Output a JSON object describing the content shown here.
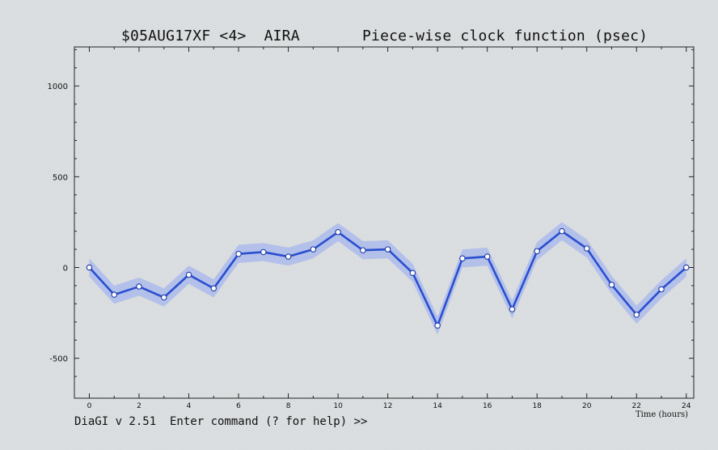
{
  "window": {
    "title": "$05AUG17XF <4>  AIRA       Piece-wise clock function (psec)",
    "status_line": "DiaGI v 2.51  Enter command (? for help) >>"
  },
  "chart_data": {
    "type": "line",
    "title": "$05AUG17XF <4>  AIRA       Piece-wise clock function (psec)",
    "xlabel": "Time (hours)",
    "ylabel": "",
    "xlim": [
      -0.6,
      24.3
    ],
    "ylim": [
      -720,
      1215
    ],
    "x_ticks": [
      0,
      2,
      4,
      6,
      8,
      10,
      12,
      14,
      16,
      18,
      20,
      22,
      24
    ],
    "y_ticks": [
      -500,
      0,
      500,
      1000
    ],
    "grid": false,
    "legend": "none",
    "series": [
      {
        "x": [
          0,
          1,
          2,
          3,
          4,
          5,
          6,
          7,
          8,
          9,
          10,
          11,
          12,
          13,
          14,
          15,
          16,
          17,
          18,
          19,
          20,
          21,
          22,
          23,
          24
        ],
        "y": [
          0,
          -150,
          -105,
          -165,
          -40,
          -115,
          75,
          85,
          60,
          100,
          195,
          95,
          100,
          -30,
          -320,
          50,
          60,
          -230,
          90,
          200,
          105,
          -95,
          -260,
          -120,
          0
        ],
        "error_band": 50,
        "color": "#2a4fcf",
        "band_color": "#a6b6ee"
      }
    ]
  }
}
